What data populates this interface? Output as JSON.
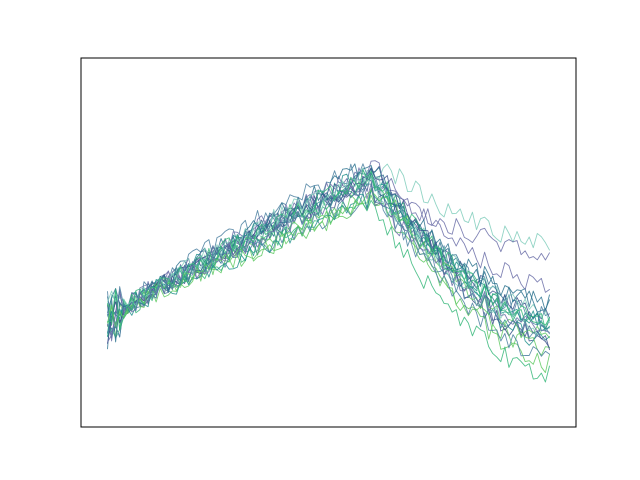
{
  "chart_data": {
    "type": "line",
    "title": "",
    "xlabel": "",
    "ylabel": "",
    "axes_visible": false,
    "grid": false,
    "legend": "none",
    "xlim": [
      -0.06,
      1.06
    ],
    "ylim": [
      -0.05,
      1.05
    ],
    "x_range": [
      0,
      1
    ],
    "points_per_series": 110,
    "palette": [
      "#3b528b",
      "#2c728e",
      "#21918c",
      "#5ec962",
      "#7fcdbb",
      "#6b6fa8",
      "#4a7fa0",
      "#35b779"
    ],
    "series": [
      {
        "color": "#3b528b",
        "amplitude": 1.0,
        "end_level": 0.22,
        "noise": 0.035
      },
      {
        "color": "#2c728e",
        "amplitude": 0.95,
        "end_level": 0.27,
        "noise": 0.03
      },
      {
        "color": "#21918c",
        "amplitude": 0.9,
        "end_level": 0.18,
        "noise": 0.03
      },
      {
        "color": "#5ec962",
        "amplitude": 0.88,
        "end_level": 0.15,
        "noise": 0.03
      },
      {
        "color": "#7fcdbb",
        "amplitude": 1.02,
        "end_level": 0.5,
        "noise": 0.03
      },
      {
        "color": "#6b6fa8",
        "amplitude": 0.93,
        "end_level": 0.48,
        "noise": 0.03
      },
      {
        "color": "#4a7fa0",
        "amplitude": 0.97,
        "end_level": 0.25,
        "noise": 0.035
      },
      {
        "color": "#35b779",
        "amplitude": 0.85,
        "end_level": 0.1,
        "noise": 0.03
      },
      {
        "color": "#3b528b",
        "amplitude": 0.91,
        "end_level": 0.3,
        "noise": 0.03
      },
      {
        "color": "#21918c",
        "amplitude": 0.94,
        "end_level": 0.24,
        "noise": 0.03
      },
      {
        "color": "#5ec962",
        "amplitude": 0.89,
        "end_level": 0.2,
        "noise": 0.03
      },
      {
        "color": "#2c728e",
        "amplitude": 0.99,
        "end_level": 0.33,
        "noise": 0.035
      },
      {
        "color": "#7fcdbb",
        "amplitude": 0.92,
        "end_level": 0.28,
        "noise": 0.03
      },
      {
        "color": "#6b6fa8",
        "amplitude": 0.96,
        "end_level": 0.35,
        "noise": 0.03
      },
      {
        "color": "#4a7fa0",
        "amplitude": 0.87,
        "end_level": 0.17,
        "noise": 0.03
      },
      {
        "color": "#35b779",
        "amplitude": 0.93,
        "end_level": 0.26,
        "noise": 0.03
      },
      {
        "color": "#3b528b",
        "amplitude": 0.95,
        "end_level": 0.19,
        "noise": 0.03
      },
      {
        "color": "#21918c",
        "amplitude": 0.9,
        "end_level": 0.29,
        "noise": 0.03
      },
      {
        "color": "#5ec962",
        "amplitude": 0.86,
        "end_level": 0.22,
        "noise": 0.03
      },
      {
        "color": "#2c728e",
        "amplitude": 0.98,
        "end_level": 0.31,
        "noise": 0.03
      },
      {
        "color": "#7fcdbb",
        "amplitude": 0.91,
        "end_level": 0.21,
        "noise": 0.03
      },
      {
        "color": "#6b6fa8",
        "amplitude": 0.94,
        "end_level": 0.27,
        "noise": 0.03
      },
      {
        "color": "#4a7fa0",
        "amplitude": 0.89,
        "end_level": 0.23,
        "noise": 0.03
      },
      {
        "color": "#35b779",
        "amplitude": 0.92,
        "end_level": 0.25,
        "noise": 0.03
      }
    ]
  }
}
